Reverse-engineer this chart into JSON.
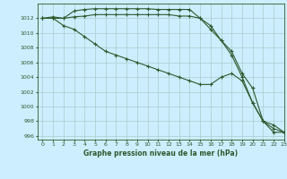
{
  "title": "Graphe pression niveau de la mer (hPa)",
  "bg_color": "#cceeff",
  "grid_color": "#aacccc",
  "line_color": "#2d5a2d",
  "xlim": [
    -0.5,
    23
  ],
  "ylim": [
    995.5,
    1014.0
  ],
  "yticks": [
    996,
    998,
    1000,
    1002,
    1004,
    1006,
    1008,
    1010,
    1012
  ],
  "xticks": [
    0,
    1,
    2,
    3,
    4,
    5,
    6,
    7,
    8,
    9,
    10,
    11,
    12,
    13,
    14,
    15,
    16,
    17,
    18,
    19,
    20,
    21,
    22,
    23
  ],
  "series": [
    [
      1012.0,
      1012.0,
      1012.0,
      1013.0,
      1013.2,
      1013.3,
      1013.3,
      1013.3,
      1013.3,
      1013.3,
      1013.3,
      1013.2,
      1013.2,
      1013.2,
      1013.2,
      1012.0,
      1011.0,
      1009.0,
      1007.5,
      1004.5,
      1002.5,
      998.0,
      996.5,
      996.5
    ],
    [
      1012.0,
      1012.2,
      1012.0,
      1012.2,
      1012.3,
      1012.5,
      1012.5,
      1012.5,
      1012.5,
      1012.5,
      1012.5,
      1012.5,
      1012.5,
      1012.3,
      1012.3,
      1012.0,
      1010.5,
      1009.0,
      1007.0,
      1004.0,
      1000.5,
      998.0,
      997.5,
      996.5
    ],
    [
      1012.0,
      1012.0,
      1011.0,
      1010.5,
      1009.5,
      1008.5,
      1007.5,
      1007.0,
      1006.5,
      1006.0,
      1005.5,
      1005.0,
      1004.5,
      1004.0,
      1003.5,
      1003.0,
      1003.0,
      1004.0,
      1004.5,
      1003.5,
      1000.5,
      998.0,
      997.0,
      996.5
    ]
  ]
}
